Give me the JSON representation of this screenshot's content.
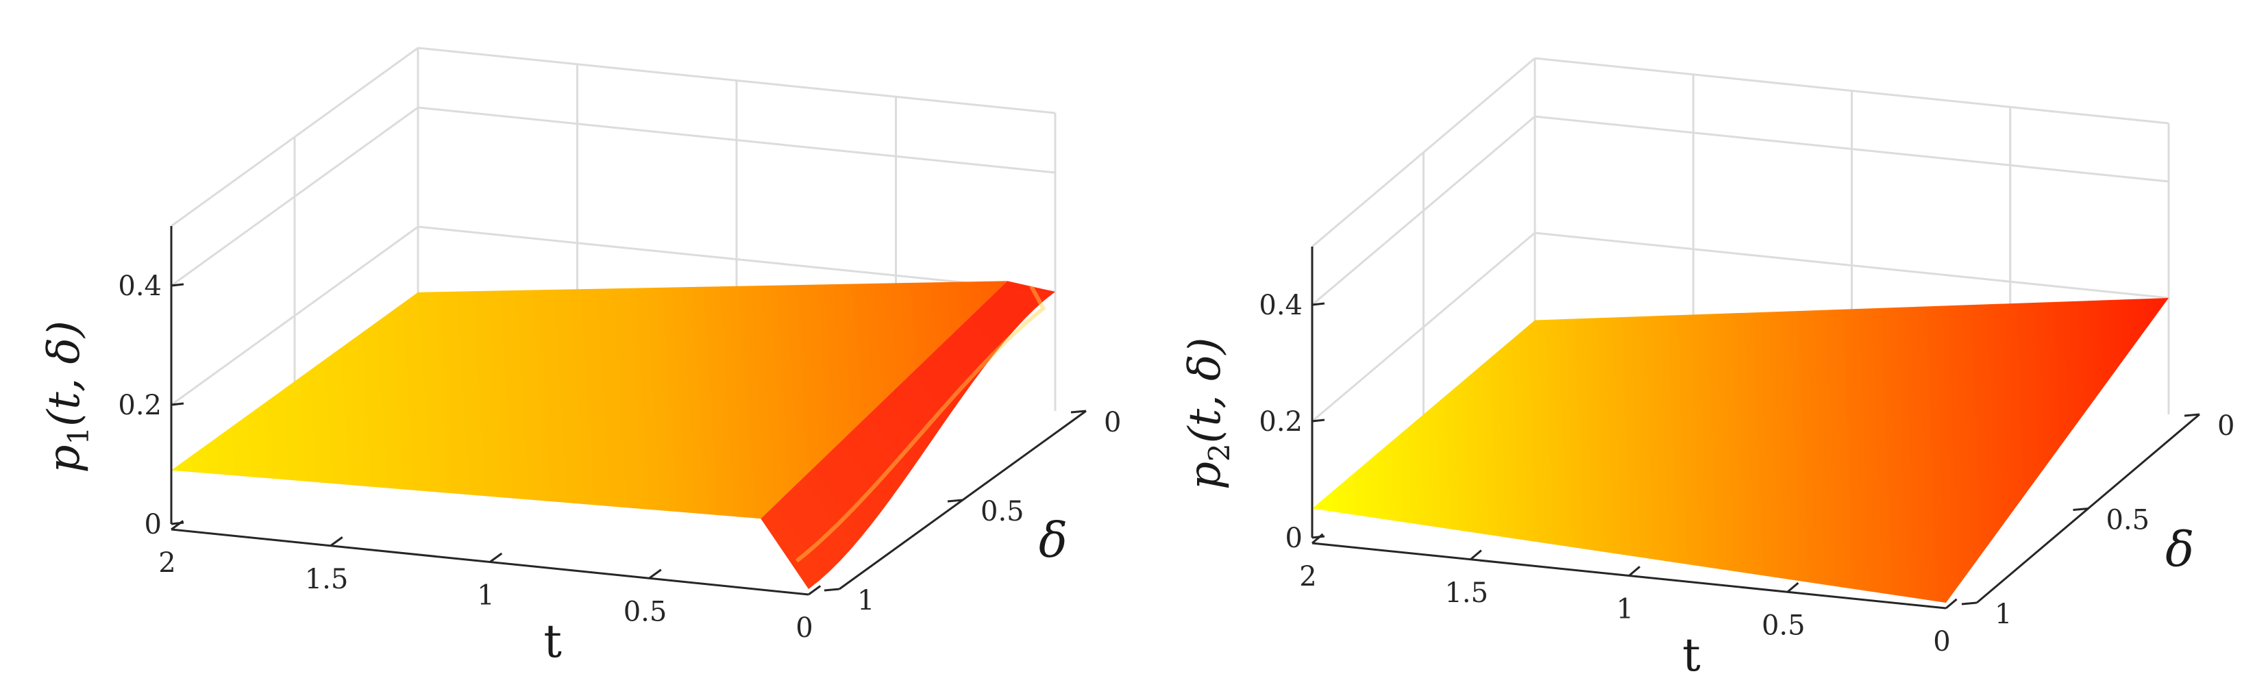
{
  "colors": {
    "yellow": "#ffff00",
    "red": "#ff0000",
    "axis": "#262626",
    "grid": "#dcdcdc"
  },
  "chart_data": [
    {
      "type": "surface",
      "zlabel_base": "p",
      "zlabel_sub": "1",
      "zlabel_args": "(t, δ)",
      "xlabel": "t",
      "ylabel": "δ",
      "x_ticks": [
        "2",
        "1.5",
        "1",
        "0.5",
        "0"
      ],
      "y_ticks": [
        "0",
        "0.5",
        "1"
      ],
      "z_ticks": [
        "0",
        "0.2",
        "0.4"
      ],
      "xlim": [
        0,
        2
      ],
      "ylim": [
        0,
        1
      ],
      "zlim": [
        0,
        0.5
      ],
      "grid": true,
      "colormap": "autumn",
      "surface": {
        "t_far": 2,
        "t_near": 0,
        "z_at_t2": 0.09,
        "z_at_t0_delta0": 0.2,
        "z_at_t0_delta1": 0.0,
        "boundary_dip_width_t": 0.15
      }
    },
    {
      "type": "surface",
      "zlabel_base": "p",
      "zlabel_sub": "2",
      "zlabel_args": "(t, δ)",
      "xlabel": "t",
      "ylabel": "δ",
      "x_ticks": [
        "2",
        "1.5",
        "1",
        "0.5",
        "0"
      ],
      "y_ticks": [
        "0",
        "0.5",
        "1"
      ],
      "z_ticks": [
        "0",
        "0.2",
        "0.4"
      ],
      "xlim": [
        0,
        2
      ],
      "ylim": [
        0,
        1
      ],
      "zlim": [
        0,
        0.5
      ],
      "grid": true,
      "colormap": "autumn",
      "surface": {
        "t_far": 2,
        "t_near": 0,
        "z_at_t2": 0.05,
        "z_at_t0_delta0": 0.2,
        "z_at_t0_delta1": 0.0,
        "boundary_dip_width_t": 0.0
      }
    }
  ]
}
